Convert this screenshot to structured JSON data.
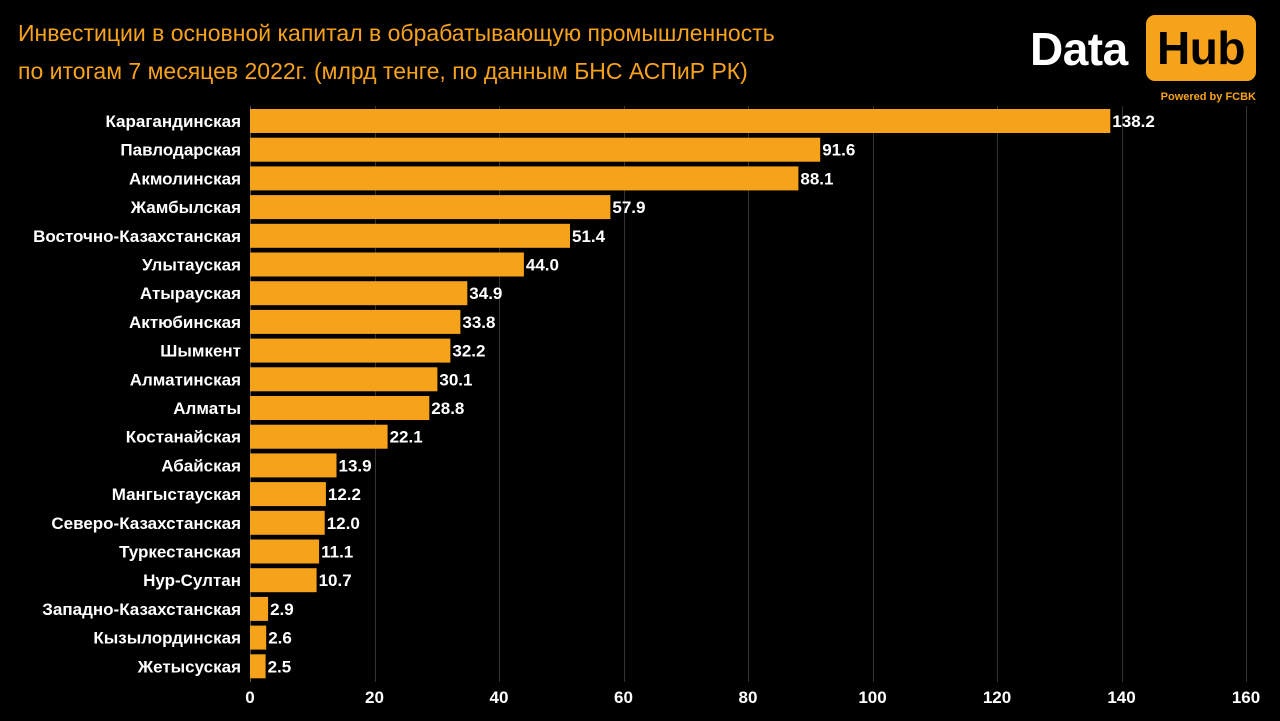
{
  "title": {
    "line1": "Инвестиции в основной капитал в обрабатывающую промышленность",
    "line2": "по итогам 7 месяцев 2022г. (млрд тенге, по данным БНС АСПиР РК)"
  },
  "logo": {
    "word1": "Data",
    "word2": "Hub",
    "subtitle": "Powered by FCBK"
  },
  "colors": {
    "bar": "#f7a21b",
    "title": "#f7a21b",
    "background": "#000000",
    "text": "#ffffff",
    "grid": "#333333"
  },
  "chart_data": {
    "type": "bar",
    "orientation": "horizontal",
    "categories": [
      "Карагандинская",
      "Павлодарская",
      "Акмолинская",
      "Жамбылская",
      "Восточно-Казахстанская",
      "Улытауская",
      "Атырауская",
      "Актюбинская",
      "Шымкент",
      "Алматинская",
      "Алматы",
      "Костанайская",
      "Абайская",
      "Мангыстауская",
      "Северо-Казахстанская",
      "Туркестанская",
      "Нур-Султан",
      "Западно-Казахстанская",
      "Кызылординская",
      "Жетысуская"
    ],
    "values": [
      138.2,
      91.6,
      88.1,
      57.9,
      51.4,
      44.0,
      34.9,
      33.8,
      32.2,
      30.1,
      28.8,
      22.1,
      13.9,
      12.2,
      12.0,
      11.1,
      10.7,
      2.9,
      2.6,
      2.5
    ],
    "value_labels": [
      "138.2",
      "91.6",
      "88.1",
      "57.9",
      "51.4",
      "44.0",
      "34.9",
      "33.8",
      "32.2",
      "30.1",
      "28.8",
      "22.1",
      "13.9",
      "12.2",
      "12.0",
      "11.1",
      "10.7",
      "2.9",
      "2.6",
      "2.5"
    ],
    "xlim": [
      0,
      160
    ],
    "xticks": [
      0,
      20,
      40,
      60,
      80,
      100,
      120,
      140,
      160
    ],
    "grid": "vertical"
  }
}
